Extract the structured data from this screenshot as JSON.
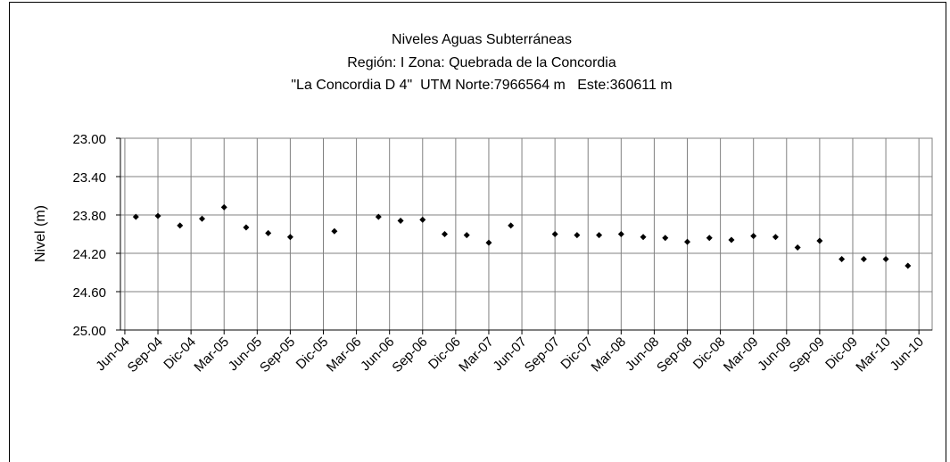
{
  "chart_data": {
    "type": "scatter",
    "title": "Niveles Aguas Subterráneas",
    "subtitle": "Región: I  Zona: Quebrada de la Concordia",
    "subtitle2": "\"La Concordia D 4\"  UTM Norte:7966564 m   Este:360611 m",
    "ylabel": "Nivel (m)",
    "ylim": [
      23,
      25
    ],
    "y_inverted": true,
    "yticks": [
      {
        "value": 23,
        "label": "23.00"
      },
      {
        "value": 23.4,
        "label": "23.40"
      },
      {
        "value": 23.8,
        "label": "23.80"
      },
      {
        "value": 24.2,
        "label": "24.20"
      },
      {
        "value": 24.6,
        "label": "24.60"
      },
      {
        "value": 25,
        "label": "25.00"
      }
    ],
    "xlim": [
      -0.4,
      73.2
    ],
    "xticks": [
      {
        "value": 0,
        "label": "Jun-04"
      },
      {
        "value": 3,
        "label": "Sep-04"
      },
      {
        "value": 6,
        "label": "Dic-04"
      },
      {
        "value": 9,
        "label": "Mar-05"
      },
      {
        "value": 12,
        "label": "Jun-05"
      },
      {
        "value": 15,
        "label": "Sep-05"
      },
      {
        "value": 18,
        "label": "Dic-05"
      },
      {
        "value": 21,
        "label": "Mar-06"
      },
      {
        "value": 24,
        "label": "Jun-06"
      },
      {
        "value": 27,
        "label": "Sep-06"
      },
      {
        "value": 30,
        "label": "Dic-06"
      },
      {
        "value": 33,
        "label": "Mar-07"
      },
      {
        "value": 36,
        "label": "Jun-07"
      },
      {
        "value": 39,
        "label": "Sep-07"
      },
      {
        "value": 42,
        "label": "Dic-07"
      },
      {
        "value": 45,
        "label": "Mar-08"
      },
      {
        "value": 48,
        "label": "Jun-08"
      },
      {
        "value": 51,
        "label": "Sep-08"
      },
      {
        "value": 54,
        "label": "Dic-08"
      },
      {
        "value": 57,
        "label": "Mar-09"
      },
      {
        "value": 60,
        "label": "Jun-09"
      },
      {
        "value": 63,
        "label": "Sep-09"
      },
      {
        "value": 66,
        "label": "Dic-09"
      },
      {
        "value": 69,
        "label": "Mar-10"
      },
      {
        "value": 72,
        "label": "Jun-10"
      }
    ],
    "grid": true,
    "color": "#000000",
    "x": [
      1,
      3,
      5,
      7,
      9,
      11,
      13,
      15,
      19,
      23,
      25,
      27,
      29,
      31,
      33,
      35,
      39,
      41,
      43,
      45,
      47,
      49,
      51,
      53,
      55,
      57,
      59,
      61,
      63,
      65,
      67,
      69,
      71
    ],
    "values": [
      23.82,
      23.81,
      23.91,
      23.84,
      23.72,
      23.93,
      23.99,
      24.03,
      23.97,
      23.82,
      23.86,
      23.85,
      24.0,
      24.01,
      24.09,
      23.91,
      24.0,
      24.01,
      24.01,
      24.0,
      24.03,
      24.04,
      24.08,
      24.04,
      24.06,
      24.02,
      24.03,
      24.14,
      24.07,
      24.26,
      24.26,
      24.26,
      24.33
    ]
  }
}
